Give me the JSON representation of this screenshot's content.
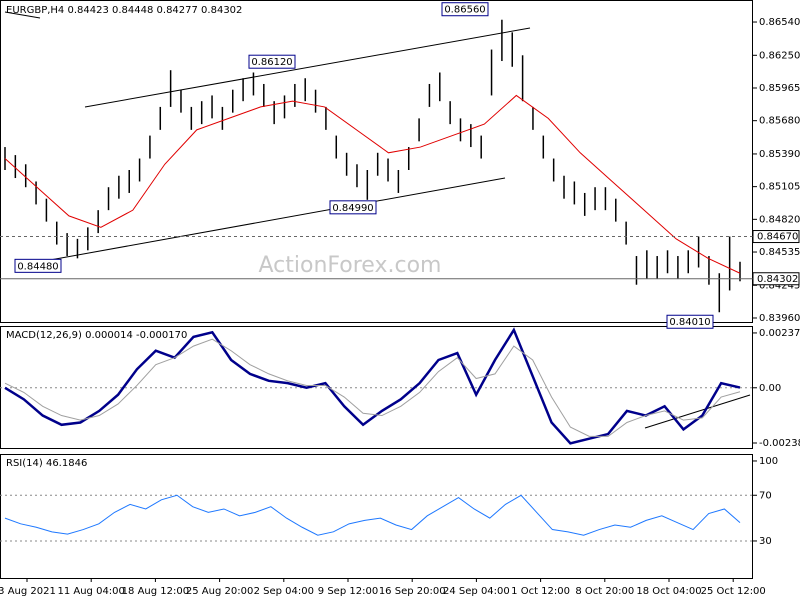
{
  "watermark": "ActionForex.com",
  "time_labels": [
    "3 Aug 2021",
    "11 Aug 04:00",
    "18 Aug 12:00",
    "25 Aug 20:00",
    "2 Sep 04:00",
    "9 Sep 12:00",
    "16 Sep 20:00",
    "24 Sep 04:00",
    "1 Oct 12:00",
    "8 Oct 20:00",
    "18 Oct 04:00",
    "25 Oct 12:00"
  ],
  "chart_data": [
    {
      "type": "range-bar",
      "title": "EURGBP,H4 0.84423 0.84448 0.84277 0.84302",
      "color": "#000000",
      "ylim": [
        0.83925,
        0.86732
      ],
      "yticks": [
        {
          "value": 0.8654,
          "label": "0.86540"
        },
        {
          "value": 0.8625,
          "label": "0.86250"
        },
        0.85965,
        {
          "value": 0.8568,
          "label": "0.85680"
        },
        {
          "value": 0.8539,
          "label": "0.85390"
        },
        0.85105,
        {
          "value": 0.8482,
          "label": "0.84820"
        },
        0.84535,
        0.84245,
        {
          "value": 0.8396,
          "label": "0.83960"
        }
      ],
      "high": [
        0.8545,
        0.8538,
        0.853,
        0.8515,
        0.85,
        0.848,
        0.847,
        0.8465,
        0.8475,
        0.849,
        0.851,
        0.852,
        0.8525,
        0.8535,
        0.8555,
        0.858,
        0.8612,
        0.8595,
        0.858,
        0.8585,
        0.859,
        0.858,
        0.8595,
        0.8605,
        0.861,
        0.86,
        0.8585,
        0.859,
        0.86,
        0.8605,
        0.8595,
        0.858,
        0.8555,
        0.854,
        0.853,
        0.8525,
        0.854,
        0.8535,
        0.8525,
        0.8545,
        0.857,
        0.86,
        0.861,
        0.8585,
        0.857,
        0.8565,
        0.8555,
        0.863,
        0.8656,
        0.8645,
        0.8625,
        0.858,
        0.8555,
        0.8535,
        0.852,
        0.8515,
        0.8505,
        0.851,
        0.851,
        0.85,
        0.848,
        0.845,
        0.8455,
        0.845,
        0.8455,
        0.845,
        0.8455,
        0.8467,
        0.845,
        0.8435,
        0.8467,
        0.8445
      ],
      "low": [
        0.8525,
        0.8518,
        0.851,
        0.8495,
        0.848,
        0.846,
        0.845,
        0.8448,
        0.8455,
        0.847,
        0.849,
        0.85,
        0.8505,
        0.8515,
        0.8535,
        0.856,
        0.858,
        0.8575,
        0.856,
        0.8565,
        0.857,
        0.856,
        0.8575,
        0.8585,
        0.859,
        0.858,
        0.8565,
        0.857,
        0.858,
        0.8585,
        0.8575,
        0.856,
        0.8535,
        0.852,
        0.851,
        0.8499,
        0.852,
        0.8515,
        0.8505,
        0.8525,
        0.855,
        0.858,
        0.8585,
        0.8565,
        0.855,
        0.8545,
        0.8535,
        0.859,
        0.862,
        0.8615,
        0.8585,
        0.856,
        0.8535,
        0.8515,
        0.85,
        0.8495,
        0.8485,
        0.849,
        0.849,
        0.848,
        0.846,
        0.8425,
        0.843,
        0.843,
        0.8435,
        0.843,
        0.8435,
        0.844,
        0.8425,
        0.8401,
        0.842,
        0.8428
      ],
      "moving_average": {
        "color": "#e00000",
        "values": [
          0.8535,
          0.851,
          0.8485,
          0.8475,
          0.849,
          0.853,
          0.856,
          0.857,
          0.858,
          0.8585,
          0.858,
          0.856,
          0.854,
          0.8545,
          0.8555,
          0.8565,
          0.859,
          0.857,
          0.854,
          0.8515,
          0.849,
          0.8465,
          0.8448,
          0.8435
        ]
      },
      "levels": [
        {
          "value": 0.8467,
          "label": "0.84670",
          "style": "dashed"
        },
        {
          "value": 0.84302,
          "label": "0.84302",
          "style": "solid"
        }
      ],
      "annotations": [
        {
          "value": 0.8656,
          "label": "0.86560"
        },
        {
          "value": 0.8612,
          "label": "0.86120"
        },
        {
          "value": 0.8499,
          "label": "0.84990"
        },
        {
          "value": 0.8448,
          "label": "0.84480"
        },
        {
          "value": 0.8401,
          "label": "0.84010"
        }
      ]
    },
    {
      "type": "line",
      "title": "MACD(12,26,9) 0.000014 -0.000170",
      "ylim": [
        -0.002603,
        0.00267
      ],
      "yticks": [
        0.00237,
        {
          "value": 0,
          "label": "0.00"
        },
        -0.002387
      ],
      "series": [
        {
          "color": "#00008b",
          "values": [
            0,
            -0.0005,
            -0.0012,
            -0.0016,
            -0.0015,
            -0.001,
            -0.0003,
            0.0008,
            0.0016,
            0.0013,
            0.0022,
            0.0024,
            0.0012,
            0.0006,
            0.0003,
            0.0002,
            0,
            0.0002,
            -0.0008,
            -0.0016,
            -0.001,
            -0.0005,
            0.0002,
            0.0012,
            0.0015,
            -0.0003,
            0.0012,
            0.0025,
            0.0005,
            -0.0015,
            -0.0024,
            -0.0022,
            -0.002,
            -0.001,
            -0.0012,
            -0.0008,
            -0.0018,
            -0.0012,
            0.0002,
            1e-05
          ]
        },
        {
          "color": "#a0a0a0",
          "values": [
            0.0002,
            -0.0002,
            -0.0008,
            -0.0012,
            -0.0014,
            -0.0012,
            -0.0007,
            0.0001,
            0.001,
            0.0013,
            0.0018,
            0.0021,
            0.0016,
            0.001,
            0.0006,
            0.0003,
            0.0001,
            0.0001,
            -0.0004,
            -0.0011,
            -0.0012,
            -0.0008,
            -0.0002,
            0.0007,
            0.0013,
            0.0004,
            0.0006,
            0.0018,
            0.0012,
            -0.0004,
            -0.0017,
            -0.0021,
            -0.0021,
            -0.0015,
            -0.0012,
            -0.001,
            -0.0014,
            -0.0013,
            -0.0004,
            -0.00017
          ]
        }
      ]
    },
    {
      "type": "line",
      "title": "RSI(14) 46.1846",
      "ylim": [
        -2.4,
        106.1
      ],
      "yticks": [
        100,
        70,
        30
      ],
      "levels": [
        70,
        30
      ],
      "series": [
        {
          "color": "#1e78ff",
          "values": [
            50,
            45,
            42,
            38,
            36,
            40,
            45,
            55,
            62,
            58,
            66,
            70,
            60,
            55,
            58,
            52,
            55,
            60,
            50,
            42,
            35,
            38,
            45,
            48,
            50,
            44,
            40,
            52,
            60,
            68,
            58,
            50,
            62,
            70,
            55,
            40,
            38,
            35,
            40,
            44,
            42,
            48,
            52,
            46,
            40,
            54,
            58,
            46
          ]
        }
      ]
    }
  ]
}
